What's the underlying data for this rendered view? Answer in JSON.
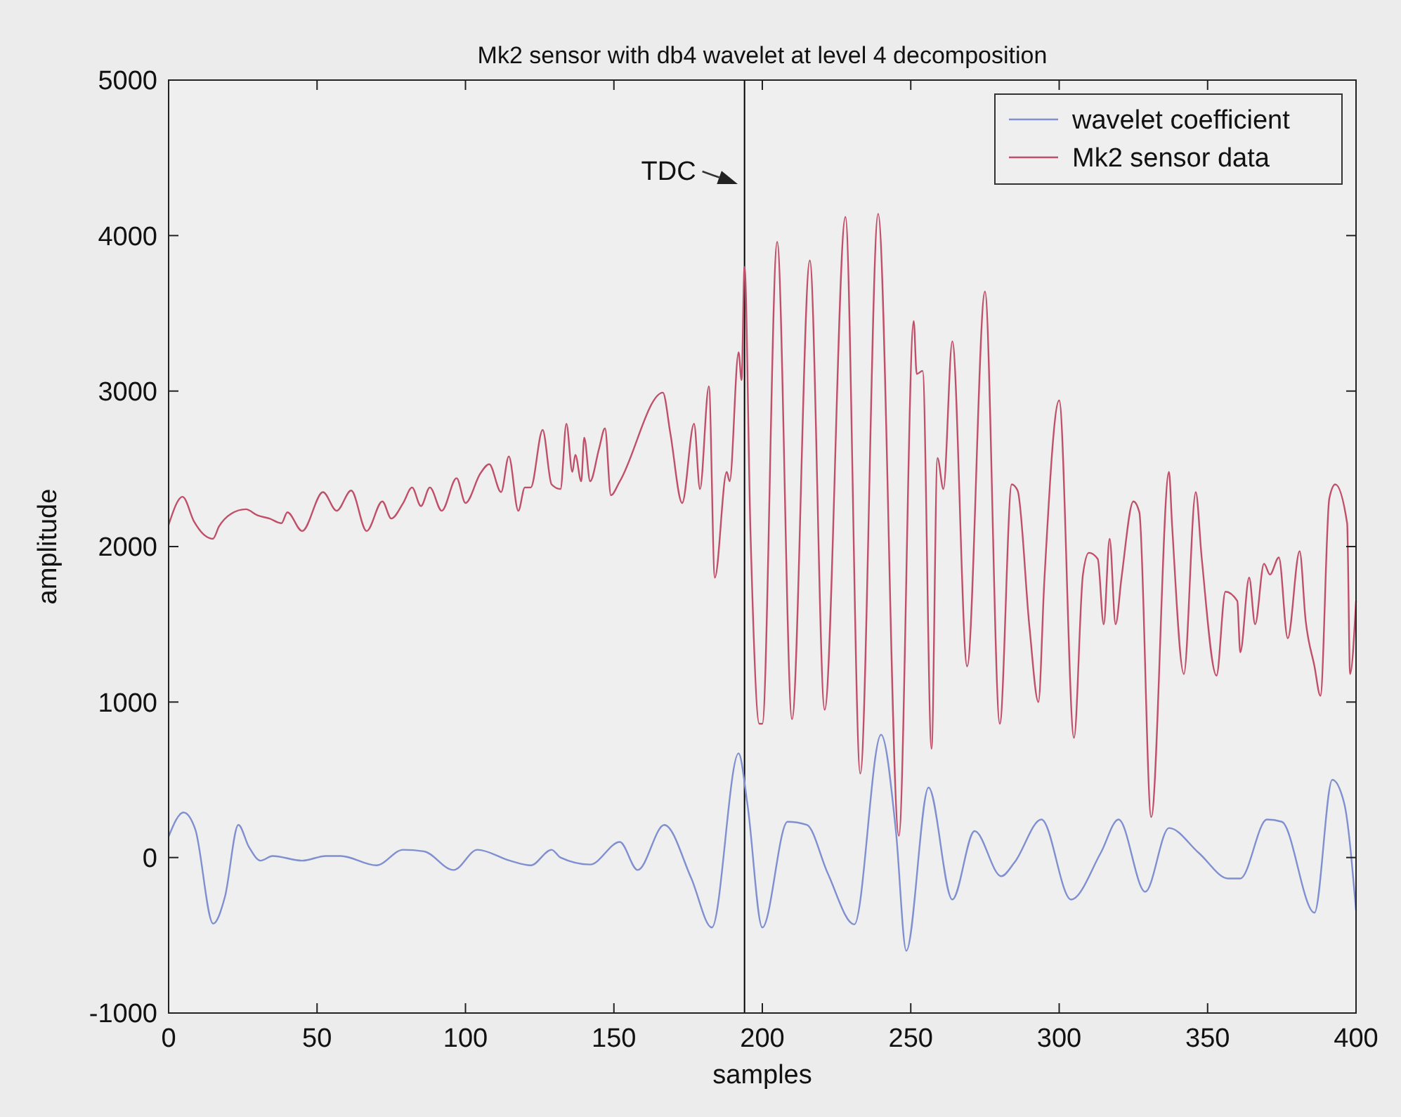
{
  "chart_data": {
    "type": "line",
    "title": "Mk2 sensor with db4 wavelet at level 4 decomposition",
    "xlabel": "samples",
    "ylabel": "amplitude",
    "xlim": [
      0,
      400
    ],
    "xticks": [
      0,
      50,
      100,
      150,
      200,
      250,
      300,
      350,
      400
    ],
    "ylim": [
      -1000,
      5000
    ],
    "yticks": [
      -1000,
      0,
      1000,
      2000,
      3000,
      4000,
      5000
    ],
    "grid": false,
    "legend": "top right",
    "line_style": "solid",
    "marker": "none",
    "series": [
      {
        "name": "wavelet coefficient",
        "color": "#7f8fd0",
        "x": [
          0,
          5,
          9,
          15,
          19,
          23.5,
          27,
          31,
          35,
          45,
          53,
          58,
          70,
          79,
          86,
          96,
          104,
          115,
          122,
          129,
          132,
          142,
          152,
          158,
          167,
          176,
          183,
          192,
          195,
          200,
          208.5,
          215,
          222,
          231,
          240,
          245,
          248.5,
          256,
          264,
          271.5,
          280.5,
          285,
          294,
          304,
          314,
          320,
          329,
          337,
          347,
          357,
          361,
          370,
          375,
          386,
          392,
          396,
          400
        ],
        "values": [
          135,
          290,
          180,
          -425,
          -250,
          210,
          70,
          -20,
          10,
          -20,
          10,
          10,
          -50,
          50,
          40,
          -80,
          50,
          -20,
          -50,
          50,
          0,
          -45,
          100,
          -80,
          210,
          -130,
          -450,
          670,
          340,
          -450,
          230,
          210,
          -100,
          -430,
          790,
          170,
          -600,
          450,
          -270,
          170,
          -120,
          -30,
          245,
          -270,
          30,
          245,
          -220,
          190,
          30,
          -135,
          -135,
          245,
          230,
          -355,
          500,
          350,
          -340
        ]
      },
      {
        "name": "Mk2 sensor data",
        "color": "#c0506a",
        "x": [
          0,
          4.7,
          8.6,
          11.7,
          14.9,
          17,
          21,
          26,
          30,
          34,
          38,
          40,
          45,
          52,
          56.6,
          61.5,
          66.7,
          72,
          75,
          79,
          82,
          85,
          88,
          92,
          97,
          100,
          105,
          108,
          112,
          114.6,
          117.8,
          120,
          122,
          126,
          129,
          132,
          134,
          136,
          137,
          139,
          140,
          142,
          145,
          147,
          149,
          152,
          166.5,
          169,
          173,
          177,
          179,
          182,
          184,
          188,
          189,
          192,
          193,
          194,
          196,
          199,
          200,
          205,
          210,
          216,
          221,
          228,
          233,
          239,
          246,
          251,
          252,
          254,
          257,
          259,
          261,
          264,
          269,
          275,
          280,
          284,
          286,
          290,
          293,
          295,
          300,
          305,
          308,
          310,
          313,
          315,
          317,
          319,
          321,
          325,
          327,
          331,
          337,
          338,
          342,
          346,
          348,
          353,
          356,
          360,
          361,
          364,
          366,
          369,
          371,
          374,
          377,
          381,
          383,
          386,
          388,
          391,
          393,
          397,
          398,
          400
        ],
        "values": [
          2140,
          2320,
          2160,
          2080,
          2050,
          2130,
          2210,
          2240,
          2200,
          2180,
          2150,
          2220,
          2100,
          2350,
          2230,
          2360,
          2100,
          2290,
          2180,
          2280,
          2380,
          2260,
          2380,
          2230,
          2440,
          2280,
          2470,
          2530,
          2350,
          2580,
          2230,
          2380,
          2380,
          2750,
          2400,
          2370,
          2790,
          2480,
          2590,
          2420,
          2700,
          2420,
          2630,
          2760,
          2330,
          2420,
          2990,
          2730,
          2280,
          2790,
          2370,
          3030,
          1800,
          2480,
          2420,
          3250,
          3070,
          3800,
          2100,
          860,
          860,
          3960,
          890,
          3840,
          950,
          4120,
          540,
          4140,
          140,
          3450,
          3110,
          3130,
          700,
          2570,
          2370,
          3320,
          1230,
          3640,
          860,
          2400,
          2360,
          1480,
          1000,
          1780,
          2940,
          770,
          1820,
          1960,
          1920,
          1500,
          2050,
          1500,
          1800,
          2290,
          2220,
          260,
          2480,
          2150,
          1180,
          2350,
          1930,
          1170,
          1710,
          1650,
          1320,
          1800,
          1500,
          1890,
          1820,
          1930,
          1410,
          1970,
          1530,
          1230,
          1040,
          2310,
          2400,
          2150,
          1180,
          1650
        ]
      }
    ],
    "ref_lines": [
      {
        "axis": "x",
        "value": 194,
        "color": "#000000",
        "label": "TDC"
      }
    ]
  }
}
